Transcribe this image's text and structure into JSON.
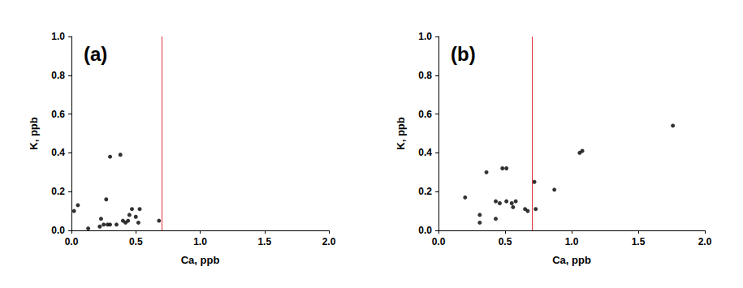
{
  "chart_data": [
    {
      "type": "scatter",
      "title": "(a)",
      "x_label": "Ca, ppb",
      "y_label": "K, ppb",
      "color": "#000000",
      "vline": 0.7,
      "x": [
        0.02,
        0.05,
        0.13,
        0.22,
        0.23,
        0.25,
        0.27,
        0.28,
        0.3,
        0.3,
        0.35,
        0.38,
        0.4,
        0.42,
        0.44,
        0.45,
        0.47,
        0.5,
        0.52,
        0.53,
        0.68
      ],
      "values": [
        0.1,
        0.13,
        0.01,
        0.02,
        0.06,
        0.03,
        0.16,
        0.03,
        0.03,
        0.38,
        0.03,
        0.39,
        0.05,
        0.04,
        0.05,
        0.08,
        0.11,
        0.07,
        0.04,
        0.11,
        0.05
      ],
      "xlim": [
        0,
        2
      ],
      "xticks": [
        {
          "value": 0,
          "label": "0.0"
        },
        {
          "value": 0.5,
          "label": "0.5"
        },
        {
          "value": 1,
          "label": "1.0"
        },
        {
          "value": 1.5,
          "label": "1.5"
        },
        {
          "value": 2,
          "label": "2.0"
        }
      ],
      "ylim": [
        0,
        1
      ],
      "yticks": [
        {
          "value": 0,
          "label": "0.0"
        },
        {
          "value": 0.2,
          "label": "0.2"
        },
        {
          "value": 0.4,
          "label": "0.4"
        },
        {
          "value": 0.6,
          "label": "0.6"
        },
        {
          "value": 0.8,
          "label": "0.8"
        },
        {
          "value": 1,
          "label": "1.0"
        }
      ],
      "grid": false
    },
    {
      "type": "scatter",
      "title": "(b)",
      "x_label": "Ca, ppb",
      "y_label": "K, ppb",
      "color": "#000000",
      "vline": 0.7,
      "x": [
        0.2,
        0.31,
        0.31,
        0.36,
        0.43,
        0.43,
        0.46,
        0.48,
        0.51,
        0.51,
        0.55,
        0.56,
        0.58,
        0.65,
        0.67,
        0.72,
        0.73,
        0.87,
        1.06,
        1.08,
        1.76
      ],
      "values": [
        0.17,
        0.04,
        0.08,
        0.3,
        0.06,
        0.15,
        0.14,
        0.32,
        0.32,
        0.15,
        0.14,
        0.12,
        0.15,
        0.11,
        0.1,
        0.25,
        0.11,
        0.21,
        0.4,
        0.41,
        0.54
      ],
      "xlim": [
        0,
        2
      ],
      "xticks": [
        {
          "value": 0,
          "label": "0.0"
        },
        {
          "value": 0.5,
          "label": "0.5"
        },
        {
          "value": 1,
          "label": "1.0"
        },
        {
          "value": 1.5,
          "label": "1.5"
        },
        {
          "value": 2,
          "label": "2.0"
        }
      ],
      "ylim": [
        0,
        1
      ],
      "yticks": [
        {
          "value": 0,
          "label": "0.0"
        },
        {
          "value": 0.2,
          "label": "0.2"
        },
        {
          "value": 0.4,
          "label": "0.4"
        },
        {
          "value": 0.6,
          "label": "0.6"
        },
        {
          "value": 0.8,
          "label": "0.8"
        },
        {
          "value": 1,
          "label": "1.0"
        }
      ],
      "grid": false
    }
  ]
}
